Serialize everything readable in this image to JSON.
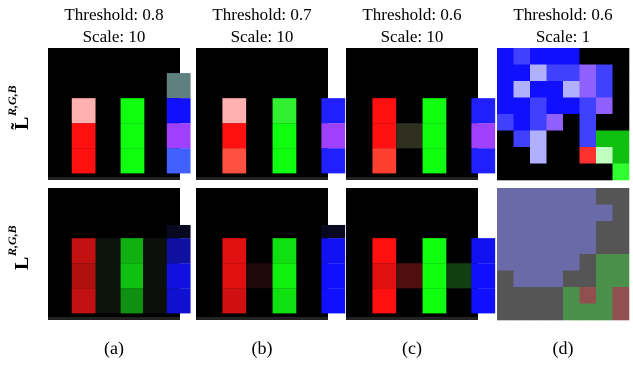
{
  "columns": [
    {
      "threshold": "Threshold: 0.8",
      "scale": "Scale: 10",
      "caption": "(a)"
    },
    {
      "threshold": "Threshold: 0.7",
      "scale": "Scale: 10",
      "caption": "(b)"
    },
    {
      "threshold": "Threshold: 0.6",
      "scale": "Scale: 10",
      "caption": "(c)"
    },
    {
      "threshold": "Threshold: 0.6",
      "scale": "Scale: 1",
      "caption": "(d)"
    }
  ],
  "rows": [
    {
      "base": "L̃",
      "superscript": "R,G,B"
    },
    {
      "base": "L",
      "superscript": "R,G,B"
    }
  ]
}
